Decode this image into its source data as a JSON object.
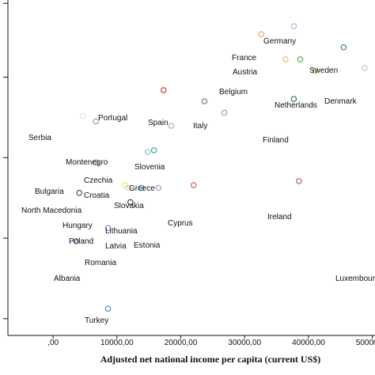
{
  "chart_data": {
    "type": "scatter",
    "title": "",
    "xlabel": "Adjusted net national income per capita (current US$)",
    "ylabel": "",
    "xlim": [
      -2500,
      55000
    ],
    "ylim": [
      0,
      1
    ],
    "x_ticks": [
      0,
      10000,
      20000,
      30000,
      40000,
      50000
    ],
    "x_tick_labels": [
      ",00",
      "10000,00",
      "20000,00",
      "30000,00",
      "40000,00",
      "50000,00"
    ],
    "y_tick_values": [
      0.05,
      0.29,
      0.53,
      0.77,
      0.99
    ],
    "grid": false,
    "legend": "none",
    "points": [
      {
        "label": "Germany",
        "x": 37700,
        "y": 0.922,
        "color": "#c4a0d8"
      },
      {
        "label": "France",
        "x": 32600,
        "y": 0.898,
        "color": "#e8a050"
      },
      {
        "label": "Sweden",
        "x": 45500,
        "y": 0.859,
        "color": "#2e7d6b"
      },
      {
        "label": "Austria",
        "x": 36400,
        "y": 0.823,
        "color": "#e2c86a"
      },
      {
        "label": "Austria",
        "x": 38700,
        "y": 0.823,
        "color": "#4caf50"
      },
      {
        "label": "Netherlands",
        "x": 41000,
        "y": 0.789,
        "color": "#8bc34a"
      },
      {
        "label": "Belgium",
        "x": 36400,
        "y": 0.823,
        "color": "#e2c86a"
      },
      {
        "label": "Denmark",
        "x": 48800,
        "y": 0.797,
        "color": "#c0c0c0"
      },
      {
        "label": "Portugal",
        "x": 17300,
        "y": 0.731,
        "color": "#c0392b"
      },
      {
        "label": "Spain",
        "x": 23700,
        "y": 0.698,
        "color": "#7b6f6b"
      },
      {
        "label": "Italy",
        "x": 26800,
        "y": 0.664,
        "color": "#a89c98"
      },
      {
        "label": "Finland",
        "x": 37700,
        "y": 0.705,
        "color": "#1f6f5a"
      },
      {
        "label": "Serbia",
        "x": 4700,
        "y": 0.654,
        "color": "#dddddd"
      },
      {
        "label": "Montenegro",
        "x": 6700,
        "y": 0.638,
        "color": "#a38ab0"
      },
      {
        "label": "Slovenia",
        "x": 18500,
        "y": 0.625,
        "color": "#c39bd3"
      },
      {
        "label": "Czechia",
        "x": 15800,
        "y": 0.552,
        "color": "#2a9d8f"
      },
      {
        "label": "Greece",
        "x": 14800,
        "y": 0.547,
        "color": "#76c7c0"
      },
      {
        "label": "Bulgaria",
        "x": 6700,
        "y": 0.516,
        "color": "#a56cc1"
      },
      {
        "label": "Ireland",
        "x": 38500,
        "y": 0.46,
        "color": "#b5457a"
      },
      {
        "label": "North Macedonia",
        "x": 11300,
        "y": 0.448,
        "color": "#e6e64d"
      },
      {
        "label": "Croatia",
        "x": 11800,
        "y": 0.44,
        "color": "#cccccc"
      },
      {
        "label": "Slovakia",
        "x": 13800,
        "y": 0.44,
        "color": "#4a90c8"
      },
      {
        "label": "Slovakia",
        "x": 16500,
        "y": 0.44,
        "color": "#7aa7d4"
      },
      {
        "label": "Cyprus",
        "x": 22000,
        "y": 0.448,
        "color": "#d9534f"
      },
      {
        "label": "Hungary",
        "x": 4100,
        "y": 0.425,
        "color": "#444444"
      },
      {
        "label": "Lithuania",
        "x": 12100,
        "y": 0.397,
        "color": "#333333"
      },
      {
        "label": "Romania",
        "x": 8600,
        "y": 0.32,
        "color": "#8e7cc3"
      },
      {
        "label": "Albania",
        "x": 3600,
        "y": 0.281,
        "color": "#5b6fb0"
      },
      {
        "label": "Turkey",
        "x": 8600,
        "y": 0.08,
        "color": "#4f7bc0"
      }
    ],
    "text_labels": [
      "Germany",
      "France",
      "Sweden",
      "Austria",
      "Belgium",
      "Netherlands",
      "Denmark",
      "Portugal",
      "Spain",
      "Italy",
      "Finland",
      "Serbia",
      "Montenegro",
      "Slovenia",
      "Czechia",
      "Greece",
      "Bulgaria",
      "Croatia",
      "North Macedonia",
      "Slovakia",
      "Ireland",
      "Cyprus",
      "Hungary",
      "Lithuania",
      "Poland",
      "Latvia",
      "Estonia",
      "Romania",
      "Albania",
      "Turkey",
      "Luxembourg"
    ]
  }
}
